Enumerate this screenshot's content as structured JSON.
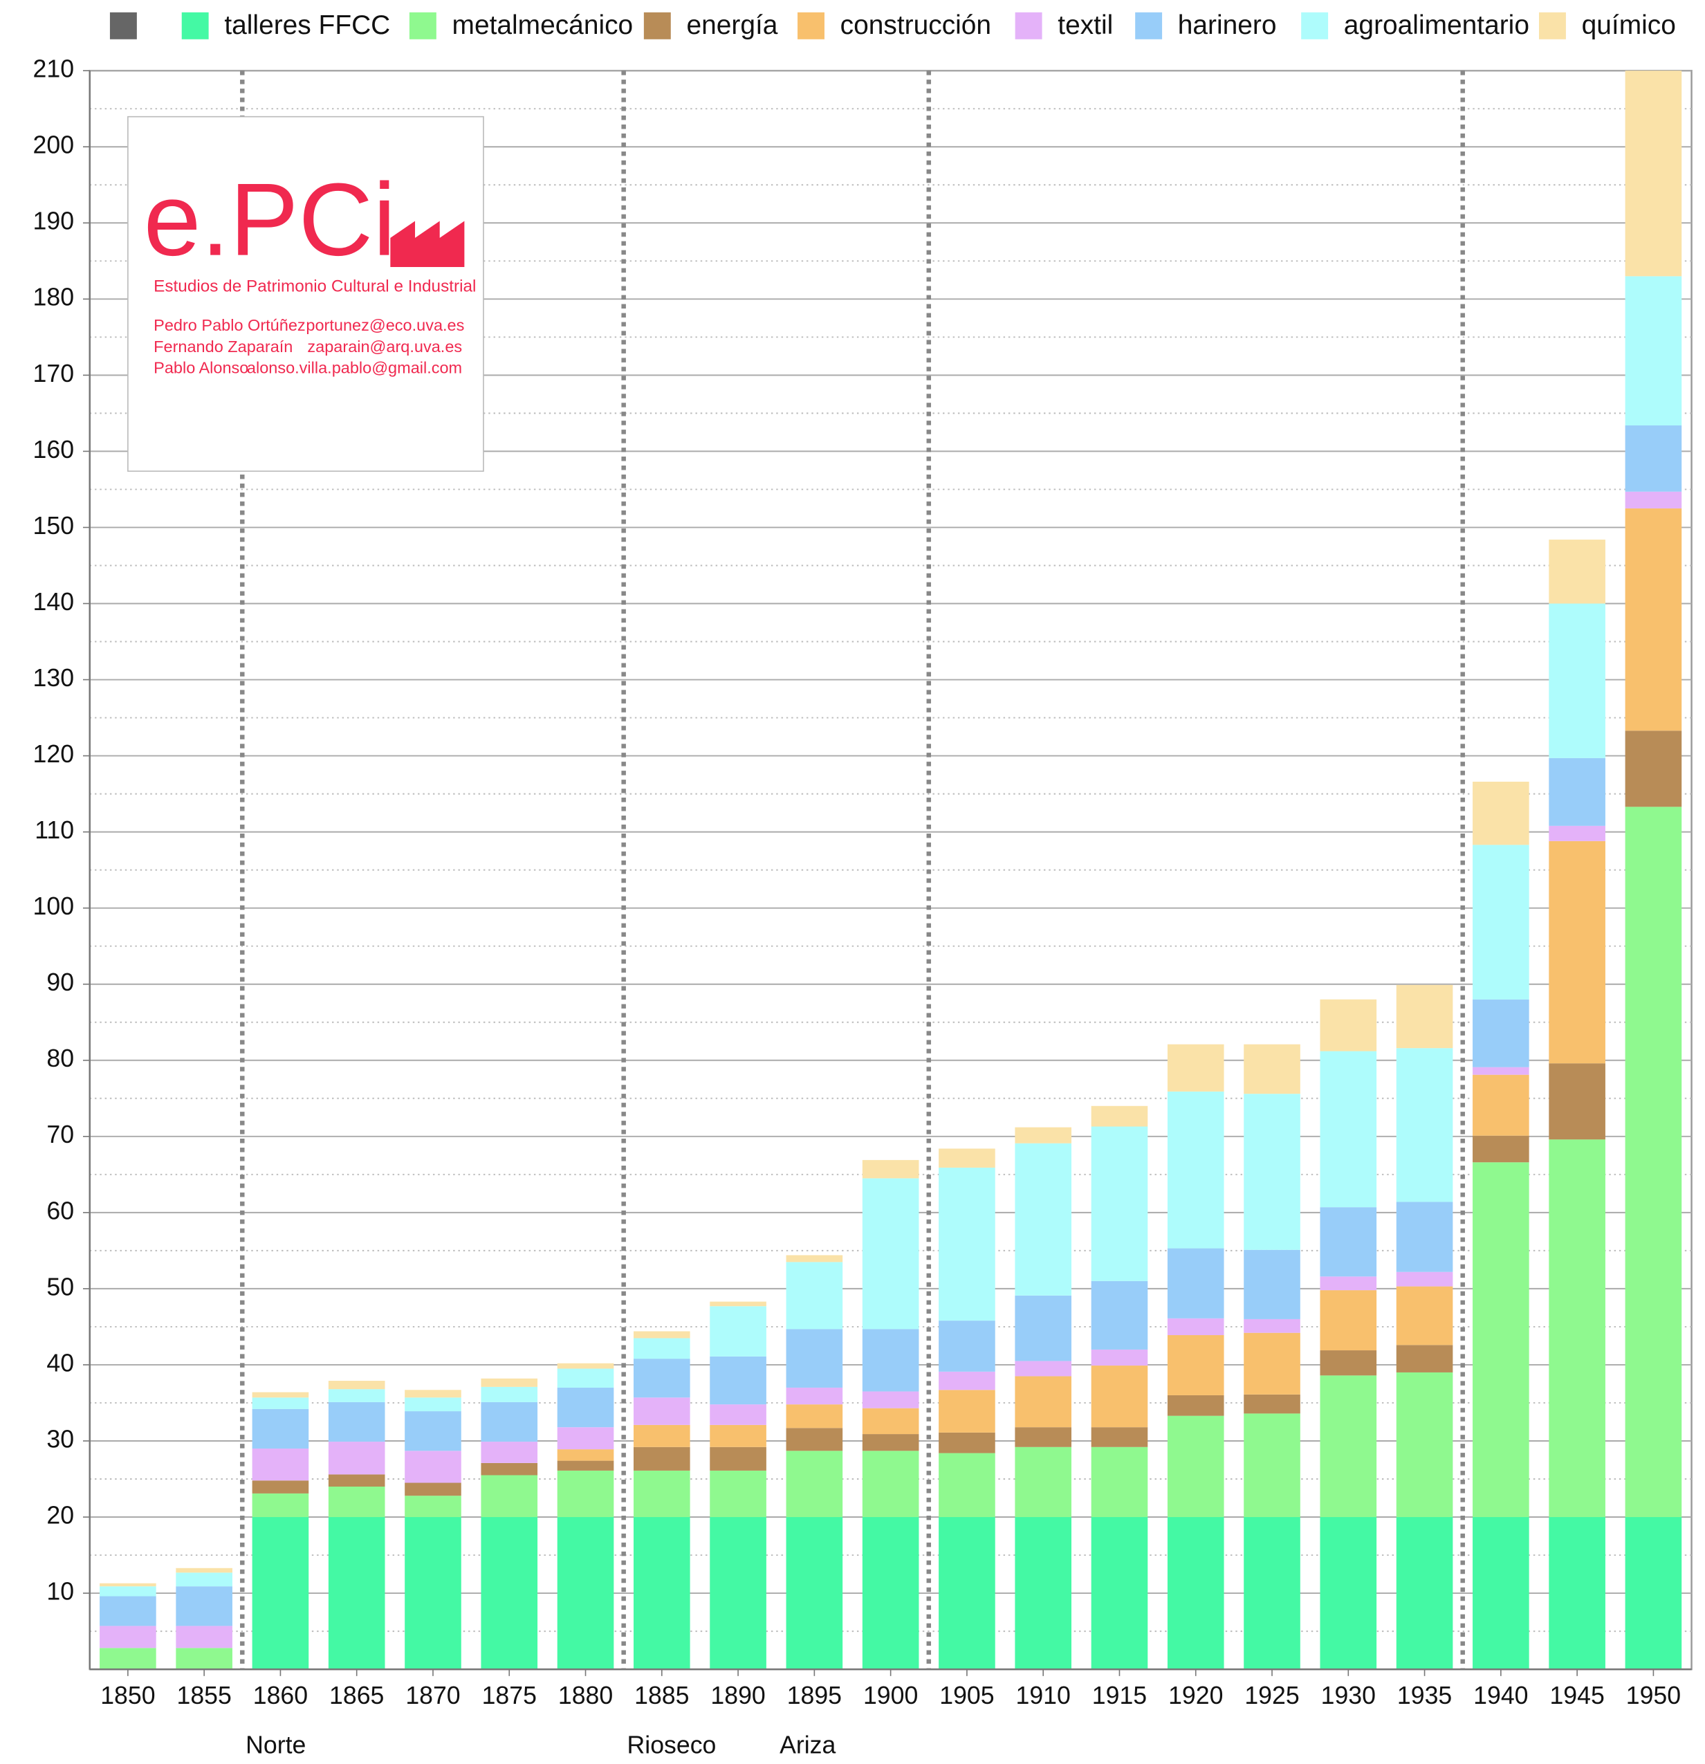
{
  "chart_data": {
    "type": "stacked_bar",
    "categories": [
      "1850",
      "1855",
      "1860",
      "1865",
      "1870",
      "1875",
      "1880",
      "1885",
      "1890",
      "1895",
      "1900",
      "1905",
      "1910",
      "1915",
      "1920",
      "1925",
      "1930",
      "1935",
      "1940",
      "1945",
      "1950"
    ],
    "series": [
      {
        "name": null,
        "color": "#666666",
        "values": [
          0,
          0,
          0,
          0,
          0,
          0,
          0,
          0,
          0,
          0,
          0,
          0,
          0,
          0,
          0,
          0,
          0,
          0,
          0,
          0,
          0
        ]
      },
      {
        "name": "talleres FFCC",
        "color": "#44f9a4",
        "values": [
          0,
          0,
          20,
          20,
          20,
          20,
          20,
          20,
          20,
          20,
          20,
          20,
          20,
          20,
          20,
          20,
          20,
          20,
          20,
          20,
          20
        ]
      },
      {
        "name": "metalmecánico",
        "color": "#8ff98f",
        "values": [
          2.8,
          2.8,
          3.1,
          4,
          2.8,
          5.5,
          6.1,
          6.1,
          6.1,
          8.7,
          8.7,
          8.4,
          9.2,
          9.2,
          13.3,
          13.6,
          18.6,
          19,
          46.6,
          49.6,
          93.3
        ]
      },
      {
        "name": "energía",
        "color": "#b88c57",
        "values": [
          0,
          0,
          1.7,
          1.6,
          1.7,
          1.6,
          1.3,
          3.1,
          3.1,
          3,
          2.2,
          2.7,
          2.6,
          2.6,
          2.7,
          2.5,
          3.3,
          3.6,
          3.5,
          10,
          10
        ]
      },
      {
        "name": "construcción",
        "color": "#f8c06d",
        "values": [
          0,
          0,
          0,
          0,
          0,
          0,
          1.5,
          2.9,
          2.9,
          3.1,
          3.4,
          5.6,
          6.7,
          8.1,
          7.9,
          8.1,
          7.9,
          7.7,
          8,
          29.2,
          29.2
        ]
      },
      {
        "name": "textil",
        "color": "#e4b2f9",
        "values": [
          2.9,
          2.9,
          4.2,
          4.3,
          4.2,
          2.8,
          2.9,
          3.6,
          2.7,
          2.2,
          2.2,
          2.4,
          2,
          2.1,
          2.2,
          1.8,
          1.8,
          1.9,
          1,
          2,
          2.2
        ]
      },
      {
        "name": "harinero",
        "color": "#98cdf9",
        "values": [
          3.9,
          5.2,
          5.2,
          5.2,
          5.2,
          5.2,
          5.2,
          5.1,
          6.3,
          7.7,
          8.2,
          6.7,
          8.6,
          9,
          9.2,
          9.1,
          9.1,
          9.2,
          8.9,
          8.9,
          8.7
        ]
      },
      {
        "name": "agroalimentario",
        "color": "#aefcfc",
        "values": [
          1.3,
          1.8,
          1.5,
          1.7,
          1.8,
          2,
          2.5,
          2.7,
          6.6,
          8.8,
          19.8,
          20.1,
          20,
          20.3,
          20.6,
          20.5,
          20.5,
          20.2,
          20.3,
          20.3,
          19.6
        ]
      },
      {
        "name": "químico",
        "color": "#fae2a8",
        "values": [
          0.4,
          0.6,
          0.7,
          1.1,
          1,
          1.1,
          0.7,
          0.9,
          0.6,
          0.9,
          2.4,
          2.5,
          2.1,
          2.7,
          6.2,
          6.5,
          6.8,
          8.3,
          8.3,
          8.4,
          27
        ]
      }
    ],
    "ylim": [
      0,
      210
    ],
    "yticks": [
      10,
      20,
      30,
      40,
      50,
      60,
      70,
      80,
      90,
      100,
      110,
      120,
      130,
      140,
      150,
      160,
      170,
      180,
      190,
      200,
      210
    ],
    "minor_yticks": [
      5,
      15,
      25,
      35,
      45,
      55,
      65,
      75,
      85,
      95,
      105,
      115,
      125,
      135,
      145,
      155,
      165,
      175,
      185,
      195,
      205
    ],
    "grid": true,
    "legend": "top",
    "dividers": [
      "1860",
      "1885",
      "1905",
      "1940"
    ],
    "annotations": [
      {
        "category": "1860",
        "label": "Norte"
      },
      {
        "category": "1885",
        "label": "Rioseco"
      },
      {
        "category": "1895",
        "label": "Ariza"
      }
    ]
  },
  "logo": {
    "title": "e.PCi",
    "subtitle": "Estudios de Patrimonio Cultural e Industrial",
    "contacts": [
      {
        "name": "Pedro Pablo Ortúñez",
        "email": "portunez@eco.uva.es"
      },
      {
        "name": "Fernando Zaparaín",
        "email": "zaparain@arq.uva.es"
      },
      {
        "name": "Pablo Alonso",
        "email": "alonso.villa.pablo@gmail.com"
      }
    ]
  }
}
